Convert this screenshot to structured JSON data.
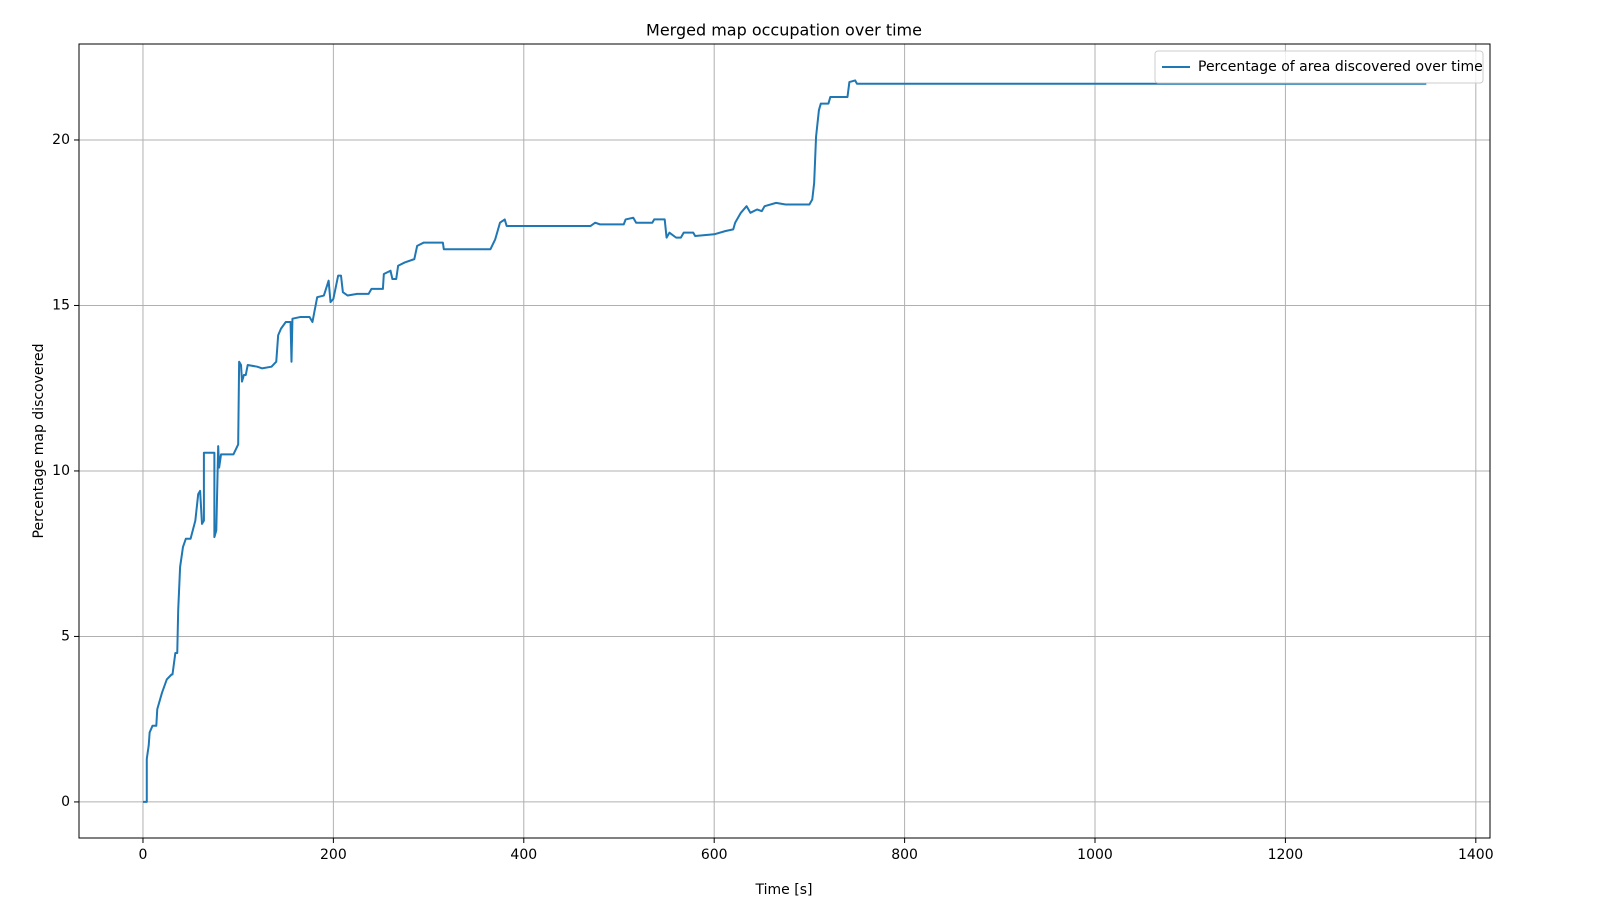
{
  "chart_data": {
    "type": "line",
    "title": "Merged map occupation over time",
    "x_label": "Time [s]",
    "y_label": "Percentage map discovered",
    "xlim": [
      -67.2,
      1414.9
    ],
    "ylim": [
      -1.09,
      22.9
    ],
    "xticks": [
      0,
      200,
      400,
      600,
      800,
      1000,
      1200,
      1400
    ],
    "yticks": [
      0,
      5,
      10,
      15,
      20
    ],
    "grid": true,
    "legend": "upper right",
    "x": [
      0,
      4,
      4,
      6,
      7,
      10,
      14,
      15,
      20,
      25,
      30,
      31,
      34,
      36,
      37,
      39,
      42,
      45,
      50,
      55,
      58,
      60,
      62,
      64,
      64,
      75,
      75,
      77,
      79,
      80,
      82,
      95,
      100,
      101,
      103,
      104,
      106,
      108,
      110,
      120,
      125,
      135,
      140,
      142,
      145,
      150,
      155,
      156,
      157,
      165,
      175,
      178,
      180,
      183,
      190,
      195,
      197,
      200,
      205,
      208,
      210,
      215,
      225,
      237,
      240,
      252,
      253,
      260,
      262,
      266,
      268,
      275,
      285,
      288,
      295,
      315,
      316,
      365,
      370,
      375,
      380,
      382,
      470,
      475,
      480,
      505,
      507,
      515,
      518,
      535,
      537,
      548,
      550,
      553,
      560,
      565,
      568,
      578,
      580,
      600,
      612,
      620,
      622,
      628,
      634,
      638,
      645,
      650,
      653,
      665,
      675,
      700,
      703,
      705,
      707,
      710,
      712,
      720,
      722,
      740,
      742,
      748,
      750,
      1348
    ],
    "series": [
      {
        "name": "Percentage of area discovered over time",
        "color": "#1f77b4",
        "values": [
          0,
          0,
          1.3,
          1.7,
          2.1,
          2.3,
          2.3,
          2.8,
          3.3,
          3.7,
          3.85,
          3.85,
          4.5,
          4.5,
          5.8,
          7.1,
          7.7,
          7.95,
          7.95,
          8.5,
          9.3,
          9.4,
          8.4,
          8.5,
          10.55,
          10.55,
          8.0,
          8.2,
          10.75,
          10.1,
          10.5,
          10.5,
          10.8,
          13.3,
          13.2,
          12.7,
          12.9,
          12.9,
          13.2,
          13.15,
          13.1,
          13.15,
          13.3,
          14.1,
          14.3,
          14.5,
          14.5,
          13.3,
          14.6,
          14.65,
          14.65,
          14.5,
          14.8,
          15.25,
          15.3,
          15.75,
          15.1,
          15.2,
          15.9,
          15.9,
          15.4,
          15.3,
          15.35,
          15.35,
          15.5,
          15.5,
          15.95,
          16.05,
          15.8,
          15.8,
          16.2,
          16.3,
          16.4,
          16.8,
          16.9,
          16.9,
          16.7,
          16.7,
          17.0,
          17.5,
          17.6,
          17.4,
          17.4,
          17.5,
          17.45,
          17.45,
          17.6,
          17.65,
          17.5,
          17.5,
          17.6,
          17.6,
          17.05,
          17.2,
          17.05,
          17.05,
          17.2,
          17.2,
          17.1,
          17.15,
          17.25,
          17.3,
          17.5,
          17.8,
          18.0,
          17.8,
          17.9,
          17.85,
          18.0,
          18.1,
          18.05,
          18.05,
          18.2,
          18.7,
          20.1,
          20.9,
          21.1,
          21.1,
          21.3,
          21.3,
          21.75,
          21.8,
          21.7,
          21.7
        ]
      }
    ]
  }
}
